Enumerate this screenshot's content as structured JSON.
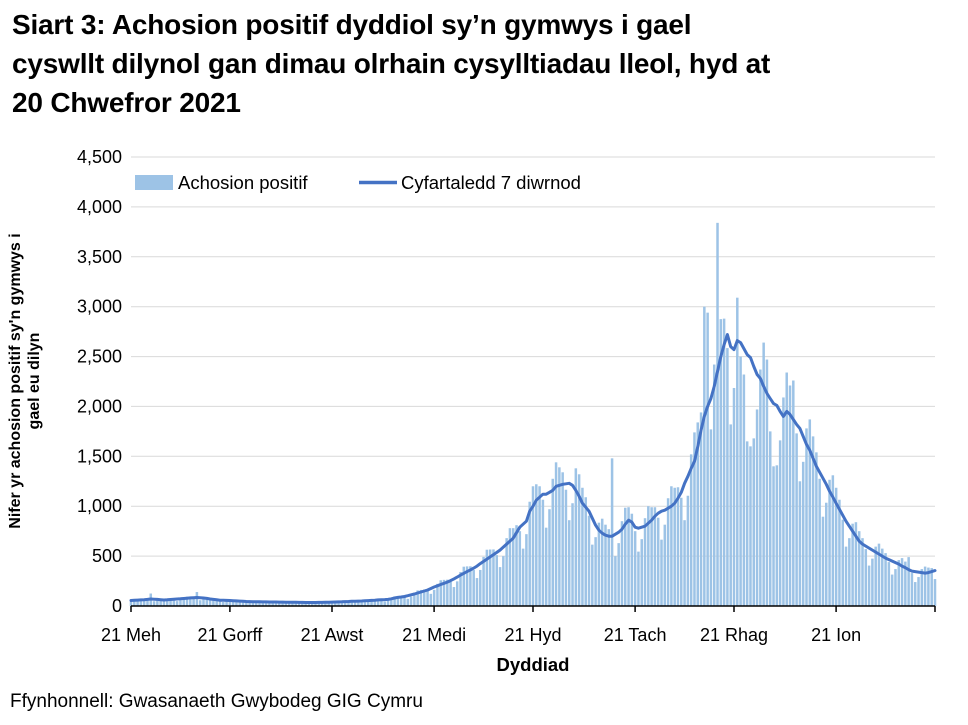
{
  "title": {
    "text": "Siart 3: Achosion positif dyddiol sy’n gymwys i gael cyswllt dilynol gan dimau olrhain cysylltiadau lleol, hyd at 20 Chwefror 2021",
    "lines": [
      "Siart 3: Achosion positif dyddiol sy’n gymwys i gael",
      "cyswllt dilynol gan dimau olrhain cysylltiadau lleol, hyd at",
      "20 Chwefror 2021"
    ]
  },
  "source": {
    "text": "Ffynhonnell: Gwasanaeth Gwybodeg GIG Cymru"
  },
  "colors": {
    "bar": "#9DC3E6",
    "line": "#4472C4",
    "grid": "#D9D9D9",
    "axis": "#000000",
    "text": "#000000"
  },
  "chart_data": {
    "type": "bar",
    "title": "Siart 3: Achosion positif dyddiol sy’n gymwys i gael cyswllt dilynol gan dimau olrhain cysylltiadau lleol, hyd at 20 Chwefror 2021",
    "xlabel": "Dyddiad",
    "ylabel": "Nifer yr achosion positif sy’n gymwys i gael eu dilyn",
    "ylabel_lines": [
      "Nifer yr achosion positif sy'n gymwys i",
      "gael eu dilyn"
    ],
    "ylim": [
      0,
      4500
    ],
    "y_tick_step": 500,
    "y_tick_labels": [
      "0",
      "500",
      "1,000",
      "1,500",
      "2,000",
      "2,500",
      "3,000",
      "3,500",
      "4,000",
      "4,500"
    ],
    "x_start": "2020-06-21",
    "x_end": "2021-02-20",
    "frequency": "daily",
    "x_tick_labels": [
      "21 Meh",
      "21 Gorff",
      "21 Awst",
      "21 Medi",
      "21 Hyd",
      "21 Tach",
      "21 Rhag",
      "21 Ion"
    ],
    "x_tick_day_index": [
      0,
      30,
      61,
      92,
      122,
      153,
      183,
      214
    ],
    "grid": "horizontal",
    "legend_position": "top-left",
    "legend": [
      {
        "label": "Achosion positif",
        "series": "bars"
      },
      {
        "label": "Cyfartaledd 7 diwrnod",
        "series": "line"
      }
    ],
    "series": [
      {
        "name": "Achosion positif",
        "type": "bar",
        "values": [
          40,
          48,
          65,
          73,
          72,
          73,
          125,
          48,
          56,
          69,
          72,
          71,
          72,
          65,
          49,
          61,
          83,
          94,
          93,
          91,
          140,
          58,
          68,
          84,
          84,
          76,
          68,
          55,
          40,
          48,
          61,
          64,
          59,
          54,
          45,
          32,
          37,
          47,
          50,
          48,
          45,
          39,
          28,
          34,
          44,
          47,
          45,
          42,
          36,
          26,
          31,
          40,
          43,
          40,
          39,
          33,
          25,
          31,
          40,
          44,
          44,
          43,
          38,
          29,
          36,
          48,
          54,
          54,
          53,
          47,
          35,
          44,
          59,
          67,
          67,
          67,
          60,
          45,
          56,
          79,
          96,
          99,
          99,
          90,
          72,
          95,
          132,
          156,
          161,
          165,
          152,
          122,
          162,
          222,
          258,
          262,
          264,
          242,
          190,
          247,
          341,
          394,
          397,
          398,
          361,
          280,
          361,
          492,
          564,
          566,
          567,
          510,
          390,
          500,
          680,
          780,
          780,
          810,
          750,
          575,
          720,
          1045,
          1200,
          1220,
          1200,
          1065,
          785,
          970,
          1275,
          1440,
          1390,
          1340,
          1165,
          860,
          1030,
          1380,
          1320,
          1185,
          1090,
          905,
          615,
          690,
          835,
          875,
          815,
          770,
          1480,
          500,
          630,
          850,
          985,
          990,
          925,
          750,
          545,
          670,
          880,
          1000,
          990,
          990,
          885,
          665,
          815,
          1080,
          1200,
          1185,
          1190,
          1085,
          860,
          1105,
          1520,
          1740,
          1840,
          1940,
          3000,
          2940,
          1770,
          2420,
          3840,
          2875,
          2880,
          2585,
          1820,
          2185,
          3090,
          2500,
          2320,
          1650,
          1600,
          1680,
          1970,
          2370,
          2640,
          2470,
          1750,
          1400,
          1410,
          1660,
          2090,
          2340,
          2210,
          2260,
          1730,
          1250,
          1445,
          1780,
          1870,
          1700,
          1540,
          1275,
          895,
          1035,
          1265,
          1310,
          1185,
          1065,
          865,
          595,
          680,
          825,
          840,
          750,
          680,
          570,
          405,
          475,
          595,
          625,
          575,
          530,
          440,
          315,
          370,
          460,
          480,
          445,
          490,
          330,
          240,
          290,
          370,
          395,
          385,
          380,
          270
        ]
      },
      {
        "name": "Cyfartaledd 7 diwrnod",
        "type": "line",
        "values": [
          55,
          57,
          59,
          61,
          63,
          66,
          70,
          68,
          66,
          63,
          60,
          62,
          65,
          68,
          70,
          72,
          75,
          78,
          81,
          83,
          85,
          83,
          80,
          76,
          70,
          66,
          62,
          58,
          57,
          56,
          55,
          53,
          51,
          49,
          47,
          45,
          44,
          43,
          42,
          42,
          41,
          41,
          40,
          40,
          40,
          39,
          39,
          38,
          38,
          37,
          37,
          36,
          36,
          35,
          35,
          35,
          35,
          36,
          36,
          37,
          38,
          39,
          40,
          41,
          42,
          44,
          45,
          47,
          48,
          49,
          50,
          52,
          54,
          56,
          58,
          61,
          63,
          64,
          66,
          72,
          80,
          86,
          90,
          95,
          103,
          112,
          120,
          130,
          140,
          150,
          160,
          175,
          190,
          202,
          215,
          228,
          240,
          255,
          272,
          290,
          310,
          328,
          345,
          362,
          380,
          400,
          425,
          447,
          470,
          492,
          515,
          537,
          560,
          590,
          620,
          650,
          680,
          735,
          790,
          820,
          850,
          950,
          1000,
          1060,
          1090,
          1120,
          1120,
          1140,
          1160,
          1200,
          1210,
          1220,
          1225,
          1230,
          1210,
          1160,
          1100,
          1030,
          990,
          950,
          880,
          810,
          760,
          730,
          710,
          700,
          700,
          720,
          740,
          770,
          820,
          860,
          840,
          790,
          780,
          790,
          800,
          830,
          860,
          900,
          930,
          950,
          960,
          980,
          1000,
          1030,
          1080,
          1140,
          1230,
          1300,
          1380,
          1450,
          1600,
          1760,
          1900,
          2000,
          2080,
          2200,
          2350,
          2500,
          2620,
          2720,
          2600,
          2570,
          2660,
          2640,
          2580,
          2520,
          2490,
          2400,
          2320,
          2280,
          2200,
          2130,
          2080,
          2030,
          2010,
          1950,
          1900,
          1950,
          1920,
          1870,
          1820,
          1780,
          1700,
          1620,
          1560,
          1480,
          1400,
          1340,
          1280,
          1220,
          1150,
          1090,
          1030,
          970,
          910,
          850,
          800,
          750,
          700,
          650,
          620,
          600,
          580,
          560,
          540,
          520,
          500,
          480,
          465,
          450,
          435,
          420,
          400,
          385,
          365,
          350,
          345,
          340,
          335,
          330,
          335,
          345,
          355
        ]
      }
    ]
  }
}
